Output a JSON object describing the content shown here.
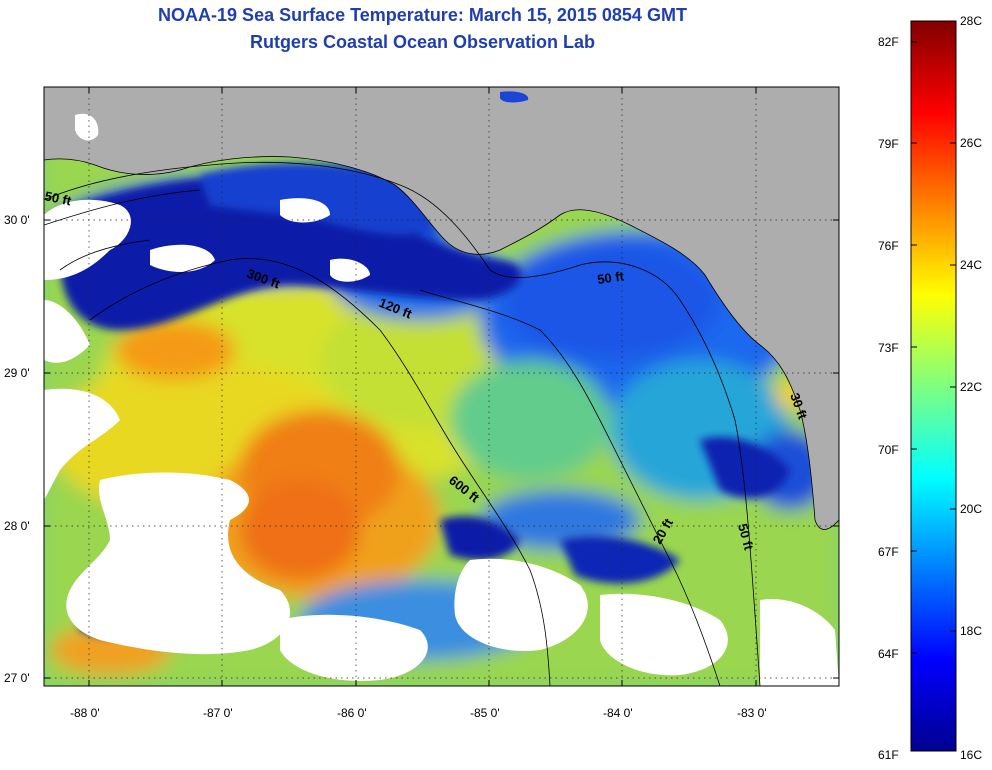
{
  "title": {
    "line1": "NOAA-19 Sea Surface Temperature:  March 15, 2015 0854 GMT",
    "line2": "Rutgers Coastal Ocean Observation Lab"
  },
  "map": {
    "region": "Gulf of Mexico, Florida west coast",
    "lon_range": [
      -88.33,
      -82.5
    ],
    "lat_range": [
      26.95,
      30.85
    ],
    "lon_ticks": [
      {
        "value": -88,
        "label": "-88 0'"
      },
      {
        "value": -87,
        "label": "-87 0'"
      },
      {
        "value": -86,
        "label": "-86 0'"
      },
      {
        "value": -85,
        "label": "-85 0'"
      },
      {
        "value": -84,
        "label": "-84 0'"
      },
      {
        "value": -83,
        "label": "-83 0'"
      }
    ],
    "lat_ticks": [
      {
        "value": 30,
        "label": "30 0'"
      },
      {
        "value": 29,
        "label": "29 0'"
      },
      {
        "value": 28,
        "label": "28 0'"
      },
      {
        "value": 27,
        "label": "27 0'"
      }
    ],
    "grid": "dotted",
    "land_color": "#adadad",
    "cloud_color": "#ffffff",
    "contour_labels": [
      "50 ft",
      "120 ft",
      "300 ft",
      "600 ft",
      "20 ft",
      "50 ft",
      "30 ft",
      "50 ft"
    ]
  },
  "colorbar": {
    "celsius_labels": [
      "28C",
      "26C",
      "24C",
      "22C",
      "20C",
      "18C",
      "16C"
    ],
    "fahrenheit_labels": [
      "82F",
      "79F",
      "76F",
      "73F",
      "70F",
      "67F",
      "64F",
      "61F"
    ],
    "range_c": [
      16,
      28
    ],
    "colormap": "jet"
  }
}
